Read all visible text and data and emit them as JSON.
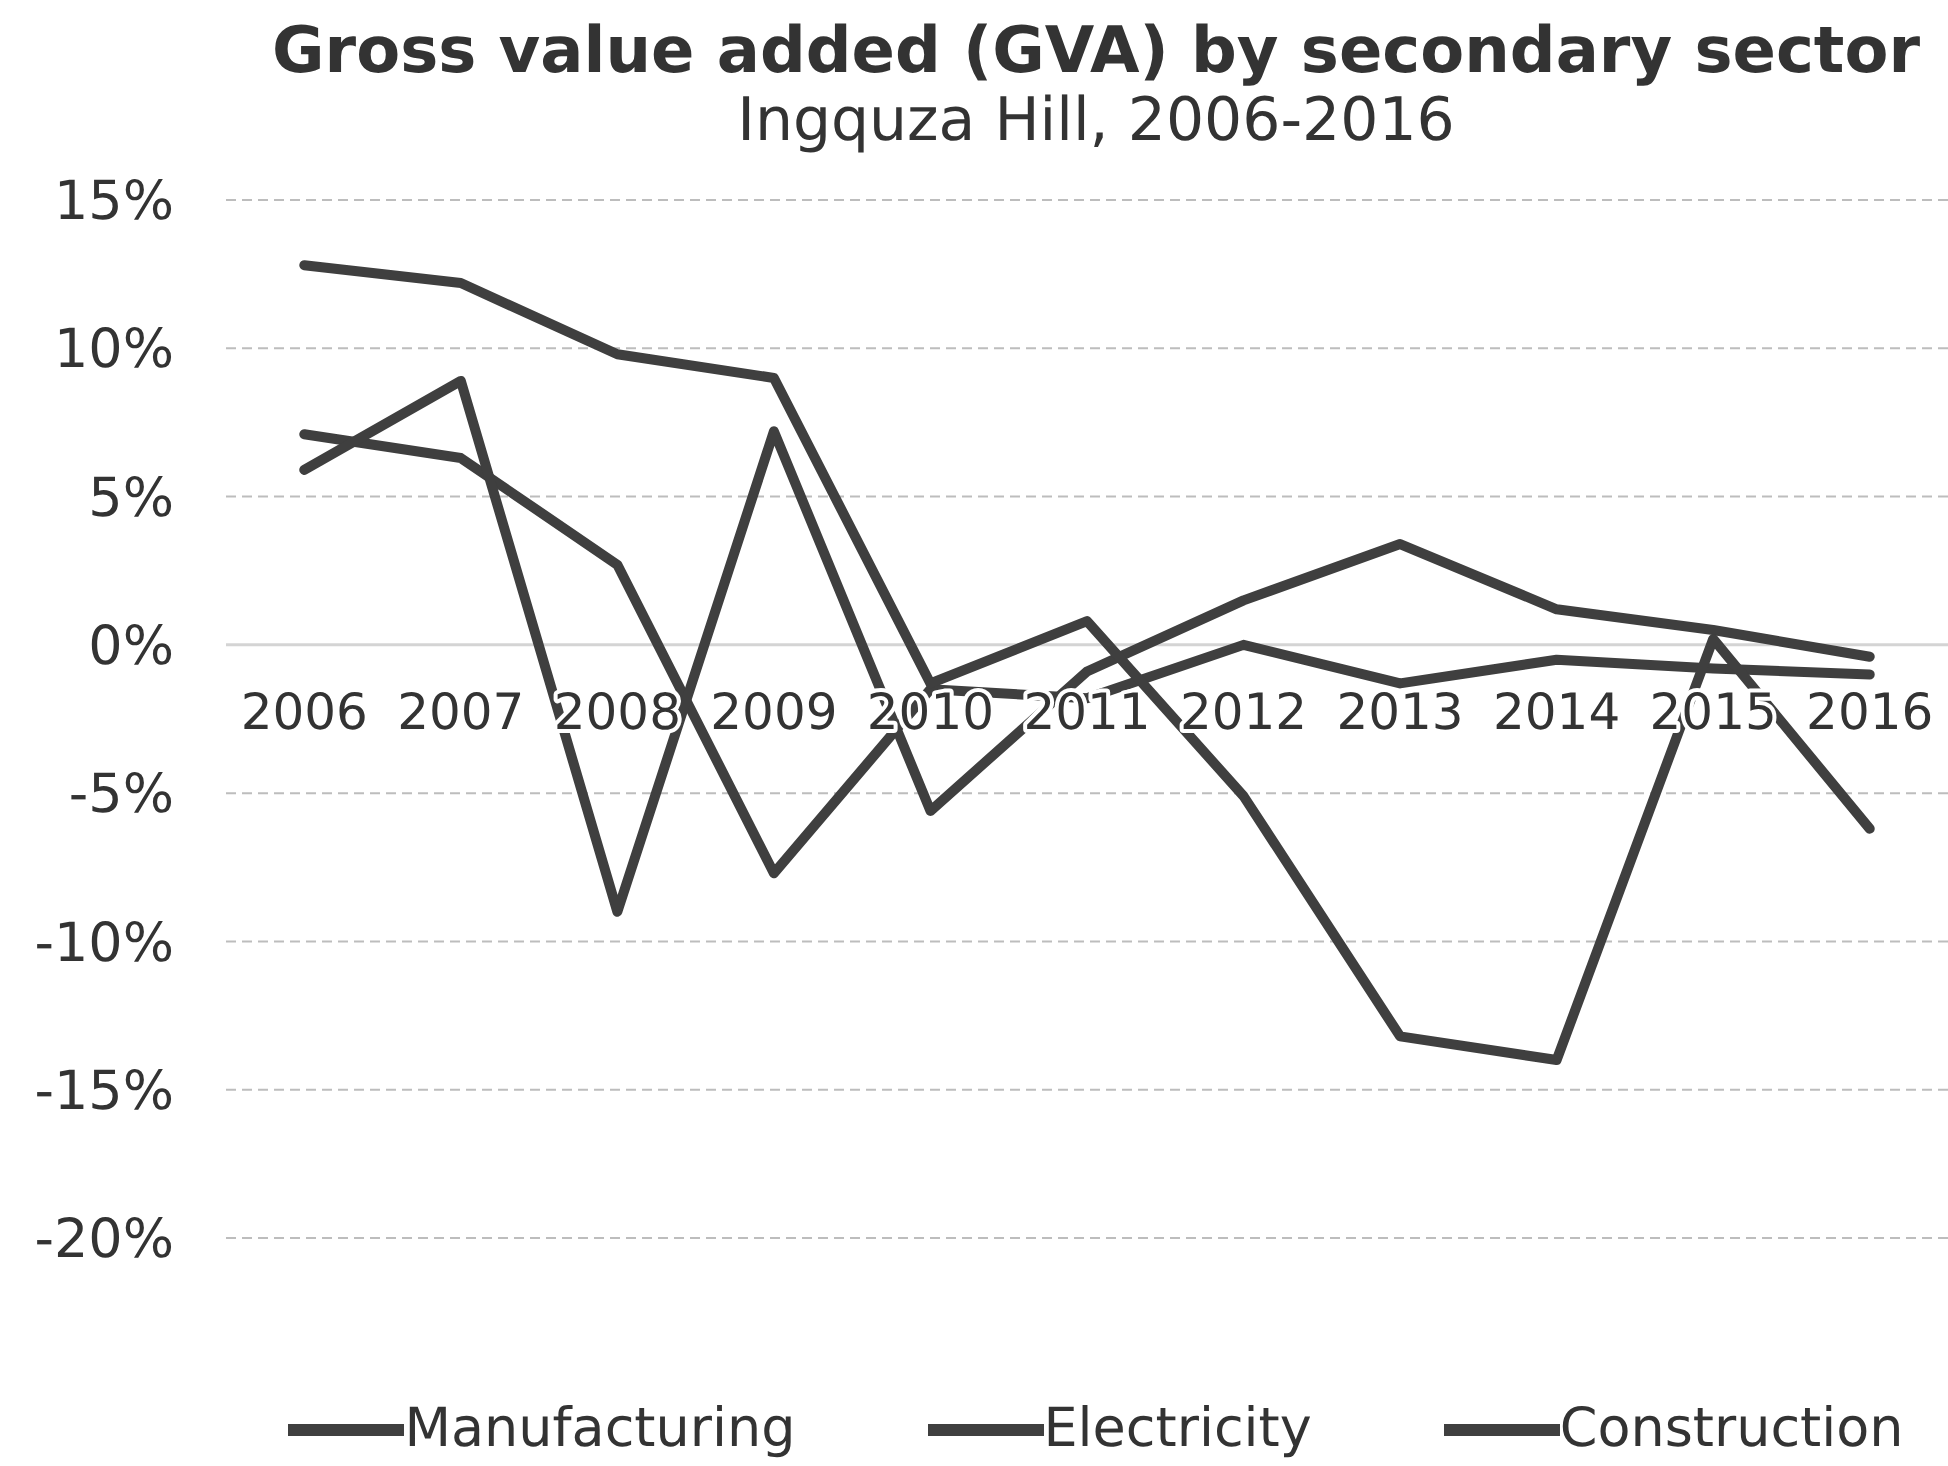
{
  "chart_data": {
    "type": "line",
    "title": "Gross value added (GVA) by secondary sector",
    "subtitle": "Ingquza Hill, 2006-2016",
    "categories": [
      "2006",
      "2007",
      "2008",
      "2009",
      "2010",
      "2011",
      "2012",
      "2013",
      "2014",
      "2015",
      "2016"
    ],
    "series": [
      {
        "name": "Manufacturing",
        "color": "#3f3f3f",
        "values": [
          7.1,
          6.3,
          2.7,
          -7.7,
          -1.5,
          -1.8,
          0.0,
          -1.3,
          -0.5,
          -0.8,
          -1.0
        ]
      },
      {
        "name": "Electricity",
        "color": "#3f3f3f",
        "values": [
          5.9,
          8.9,
          -9.0,
          7.2,
          -5.6,
          -0.9,
          1.5,
          3.4,
          1.2,
          0.5,
          -0.4
        ]
      },
      {
        "name": "Construction",
        "color": "#3f3f3f",
        "values": [
          12.8,
          12.2,
          9.8,
          9.0,
          -1.3,
          0.8,
          -5.1,
          -13.2,
          -14.0,
          0.2,
          -6.2
        ]
      }
    ],
    "ylim": [
      -20,
      15
    ],
    "yticks": [
      {
        "value": -20,
        "label": "-20%"
      },
      {
        "value": -15,
        "label": "-15%"
      },
      {
        "value": -10,
        "label": "-10%"
      },
      {
        "value": -5,
        "label": "-5%"
      },
      {
        "value": 0,
        "label": "0%"
      },
      {
        "value": 5,
        "label": "5%"
      },
      {
        "value": 10,
        "label": "10%"
      },
      {
        "value": 15,
        "label": "15%"
      }
    ],
    "grid": "y",
    "legend": "bottom",
    "line_style": "solid"
  }
}
